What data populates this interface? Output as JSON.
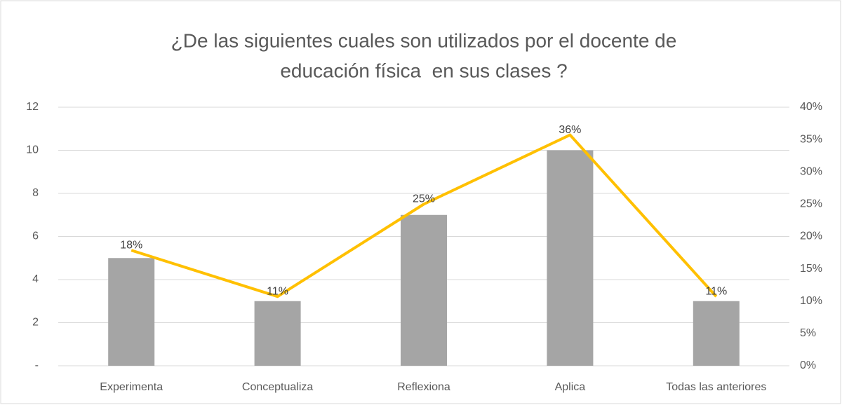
{
  "chart_data": {
    "type": "combo",
    "title": [
      "¿De las siguientes cuales son utilizados por el docente de",
      "educación física  en sus clases ?"
    ],
    "categories": [
      "Experimenta",
      "Conceptualiza",
      "Reflexiona",
      "Aplica",
      "Todas las anteriores"
    ],
    "series": [
      {
        "type": "bar",
        "color": "#a5a5a5",
        "values": [
          5,
          3,
          7,
          10,
          3
        ]
      },
      {
        "type": "line",
        "axis": "y2",
        "color": "#ffc000",
        "values": [
          17.86,
          10.71,
          25,
          35.71,
          10.71
        ],
        "value_labels": [
          "18%",
          "11%",
          "25%",
          "36%",
          "11%"
        ]
      }
    ],
    "ylim": [
      0,
      12
    ],
    "yticks": [
      {
        "value": 0,
        "label": "-"
      },
      2,
      4,
      6,
      8,
      10,
      12
    ],
    "y2lim": [
      0,
      40
    ],
    "y2ticks": [
      {
        "value": 0,
        "label": "0%"
      },
      {
        "value": 5,
        "label": "5%"
      },
      {
        "value": 10,
        "label": "10%"
      },
      {
        "value": 15,
        "label": "15%"
      },
      {
        "value": 20,
        "label": "20%"
      },
      {
        "value": 25,
        "label": "25%"
      },
      {
        "value": 30,
        "label": "30%"
      },
      {
        "value": 35,
        "label": "35%"
      },
      {
        "value": 40,
        "label": "40%"
      }
    ],
    "grid": true
  }
}
